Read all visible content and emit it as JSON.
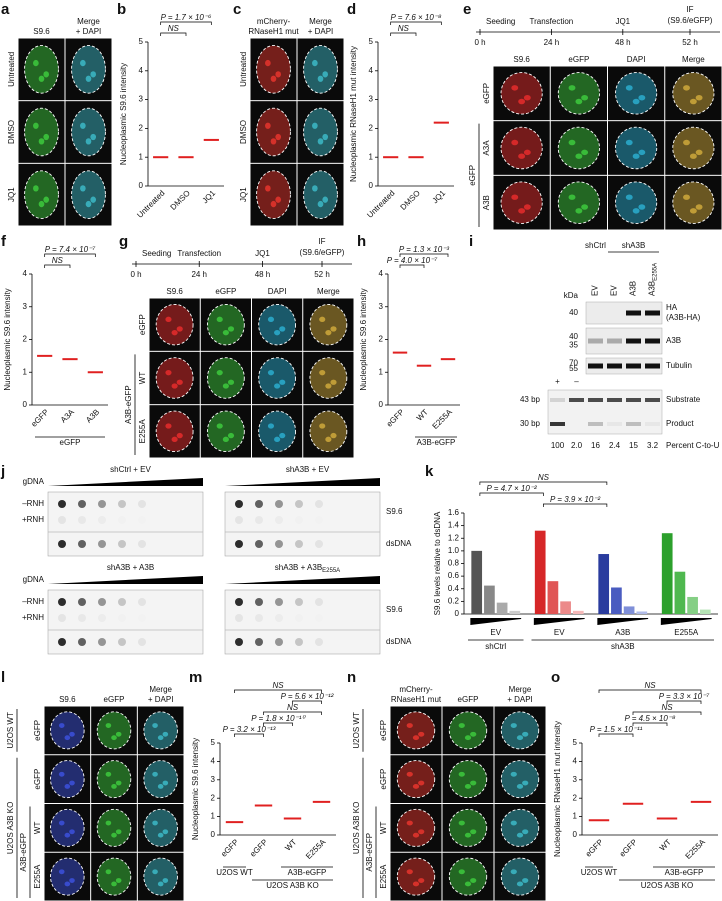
{
  "panels": [
    {
      "letter": "a",
      "kind": "images",
      "columns": [
        {
          "lines": [
            "S9.6"
          ],
          "color": "#2ca02c",
          "tint": "#3cc43c"
        },
        {
          "lines": [
            "Merge",
            "+ DAPI"
          ],
          "color": "#222",
          "tint": "#3bb4c1"
        }
      ],
      "rows": [
        "Untreated",
        "DMSO",
        "JQ1"
      ]
    },
    {
      "letter": "b",
      "kind": "scatter",
      "ylabel": "Nucleoplasmic S9.6 intensity",
      "ylim": [
        0,
        5
      ],
      "yticks": [
        0,
        1,
        2,
        3,
        4,
        5
      ],
      "categories": [
        "Untreated",
        "DMSO",
        "JQ1"
      ],
      "medians": [
        1.0,
        1.0,
        1.6
      ],
      "brackets": [
        "P = 1.7 × 10⁻⁶",
        "NS"
      ]
    },
    {
      "letter": "c",
      "kind": "images",
      "columns": [
        {
          "lines": [
            "mCherry-",
            "RNaseH1 mut"
          ],
          "color": "#e0332c",
          "tint": "#e0332c"
        },
        {
          "lines": [
            "Merge",
            "+ DAPI"
          ],
          "color": "#222",
          "tint": "#3bb4c1"
        }
      ],
      "rows": [
        "Untreated",
        "DMSO",
        "JQ1"
      ]
    },
    {
      "letter": "d",
      "kind": "scatter",
      "ylabel": "Nucleoplasmic RNaseH1 mut intensity",
      "ylim": [
        0,
        5
      ],
      "yticks": [
        0,
        1,
        2,
        3,
        4,
        5
      ],
      "categories": [
        "Untreated",
        "DMSO",
        "JQ1"
      ],
      "medians": [
        1.0,
        1.0,
        2.2
      ],
      "brackets": [
        "P = 7.6 × 10⁻⁸",
        "NS"
      ]
    },
    {
      "letter": "e",
      "kind": "images",
      "timeline": {
        "steps": [
          "Seeding",
          "Transfection",
          "JQ1"
        ],
        "readout": [
          "IF",
          "(S9.6/eGFP)"
        ],
        "times": [
          "0 h",
          "24 h",
          "48 h",
          "52 h"
        ]
      },
      "columns": [
        {
          "lines": [
            "S9.6"
          ],
          "color": "#e02b2b",
          "tint": "#e02b2b"
        },
        {
          "lines": [
            "eGFP"
          ],
          "color": "#2ca02c",
          "tint": "#3cc43c"
        },
        {
          "lines": [
            "DAPI"
          ],
          "color": "#2f9fd8",
          "tint": "#2aa7c9"
        },
        {
          "lines": [
            "Merge"
          ],
          "color": "#222",
          "tint": "#c9a43a"
        }
      ],
      "rows": [
        "eGFP",
        "A3A",
        "A3B"
      ],
      "groups": [
        "eGFP"
      ]
    },
    {
      "letter": "f",
      "kind": "scatter",
      "ylabel": "Nucleoplasmic S9.6 intensity",
      "ylim": [
        0,
        4
      ],
      "yticks": [
        0,
        1,
        2,
        3,
        4
      ],
      "categories": [
        "eGFP",
        "A3A",
        "A3B"
      ],
      "medians": [
        1.5,
        1.4,
        1.0
      ],
      "brackets": [
        "P = 7.4 × 10⁻⁷",
        "NS"
      ],
      "groups": [
        "eGFP"
      ]
    },
    {
      "letter": "g",
      "kind": "images",
      "timeline": {
        "steps": [
          "Seeding",
          "Transfection",
          "JQ1"
        ],
        "readout": [
          "IF",
          "(S9.6/eGFP)"
        ],
        "times": [
          "0 h",
          "24 h",
          "48 h",
          "52 h"
        ]
      },
      "columns": [
        {
          "lines": [
            "S9.6"
          ],
          "color": "#e02b2b",
          "tint": "#e02b2b"
        },
        {
          "lines": [
            "eGFP"
          ],
          "color": "#2ca02c",
          "tint": "#3cc43c"
        },
        {
          "lines": [
            "DAPI"
          ],
          "color": "#2f9fd8",
          "tint": "#2aa7c9"
        },
        {
          "lines": [
            "Merge"
          ],
          "color": "#222",
          "tint": "#c9a43a"
        }
      ],
      "rows": [
        "eGFP",
        "WT",
        "E255A"
      ],
      "groups": [
        "A3B-eGFP"
      ]
    },
    {
      "letter": "h",
      "kind": "scatter",
      "ylabel": "Nucleoplasmic S9.6 intensity",
      "ylim": [
        0,
        4
      ],
      "yticks": [
        0,
        1,
        2,
        3,
        4
      ],
      "categories": [
        "eGFP",
        "WT",
        "E255A"
      ],
      "medians": [
        1.6,
        1.2,
        1.4
      ],
      "brackets": [
        "P = 1.3 × 10⁻³",
        "P = 4.0 × 10⁻⁷"
      ],
      "groups": [
        "A3B-eGFP"
      ]
    },
    {
      "letter": "i",
      "kind": "blot",
      "groups": [
        "shCtrl",
        "shA3B"
      ],
      "lanes": [
        "EV",
        "EV",
        "A3B"
      ],
      "last_lane": {
        "base": "A3B",
        "sub": "E255A"
      },
      "unit": "kDa",
      "blots": [
        {
          "markers": [
            "40"
          ],
          "labels": [
            "HA",
            "(A3B-HA)"
          ]
        },
        {
          "markers": [
            "40",
            "35"
          ],
          "labels": [
            "A3B"
          ]
        },
        {
          "markers": [
            "70",
            "55"
          ],
          "labels": [
            "Tubulin"
          ]
        }
      ],
      "gel": {
        "markers": [
          "43 bp",
          "30 bp"
        ],
        "controls": [
          "+",
          "–"
        ],
        "bands": [
          "Substrate",
          "Product"
        ],
        "percents": [
          "100",
          "2.0",
          "16",
          "2.4",
          "15",
          "3.2"
        ],
        "percent_label": "Percent C-to-U"
      }
    },
    {
      "letter": "j",
      "kind": "dots",
      "blots": [
        {
          "title": "shCtrl + EV"
        },
        {
          "title": "shA3B + EV"
        },
        {
          "title": "shA3B + A3B"
        },
        {
          "title": "shA3B + A3B",
          "sub": "E255A"
        }
      ],
      "rows": [
        "gDNA",
        "–RNH",
        "+RNH"
      ],
      "signals": [
        "S9.6",
        "dsDNA"
      ]
    },
    {
      "letter": "k",
      "kind": "bars",
      "ylabel": "S9.6 levels relative to dsDNA",
      "ylim": [
        0,
        1.6
      ],
      "yticks": [
        0,
        0.2,
        0.4,
        0.6,
        0.8,
        {
          "value": 1,
          "label": "1.0"
        },
        1.2,
        1.4,
        1.6
      ],
      "sets": [
        {
          "label": "EV",
          "values": [
            1.0,
            0.45,
            0.18,
            0.05
          ],
          "colors": [
            "#555",
            "#888",
            "#aaa",
            "#ccc"
          ]
        },
        {
          "label": "EV",
          "values": [
            1.32,
            0.52,
            0.2,
            0.05
          ],
          "colors": [
            "#d62728",
            "#e05555",
            "#ec8a8a",
            "#f5b8b8"
          ]
        },
        {
          "label": "A3B",
          "values": [
            0.95,
            0.42,
            0.12,
            0.04
          ],
          "colors": [
            "#2a3c9e",
            "#4a5cc0",
            "#7f8fd8",
            "#b0bbe8"
          ]
        },
        {
          "label": "E255A",
          "values": [
            1.28,
            0.67,
            0.27,
            0.07
          ],
          "colors": [
            "#2ca02c",
            "#4fb84f",
            "#85cf85",
            "#b5e3b5"
          ]
        }
      ],
      "groups": [
        "shCtrl",
        "shA3B"
      ],
      "brackets": [
        "NS",
        "P = 4.7 × 10⁻²",
        "P = 3.9 × 10⁻²"
      ]
    },
    {
      "letter": "l",
      "kind": "images",
      "columns": [
        {
          "lines": [
            "S9.6"
          ],
          "color": "#3b4fd6",
          "tint": "#3b4fd6"
        },
        {
          "lines": [
            "eGFP"
          ],
          "color": "#2ca02c",
          "tint": "#3cc43c"
        },
        {
          "lines": [
            "Merge",
            "+ DAPI"
          ],
          "color": "#222",
          "tint": "#3bb4c1"
        }
      ],
      "rows": [
        "eGFP",
        "eGFP",
        "WT",
        "E255A"
      ],
      "groups": [
        "U2OS WT",
        "U2OS A3B KO",
        "A3B-eGFP"
      ]
    },
    {
      "letter": "m",
      "kind": "scatter",
      "ylabel": "Nucleoplasmic S9.6 intensity",
      "ylim": [
        0,
        5
      ],
      "yticks": [
        0,
        1,
        2,
        3,
        4,
        5
      ],
      "categories": [
        "eGFP",
        "eGFP",
        "WT",
        "E255A"
      ],
      "medians": [
        0.7,
        1.6,
        0.9,
        1.8
      ],
      "brackets": [
        "NS",
        "P = 5.6 × 10⁻¹²",
        "NS",
        "P = 1.8 × 10⁻¹⁰",
        "P = 3.2 × 10⁻¹³"
      ],
      "groups": [
        "U2OS WT",
        "A3B-eGFP",
        "U2OS A3B KO"
      ]
    },
    {
      "letter": "n",
      "kind": "images",
      "columns": [
        {
          "lines": [
            "mCherry-",
            "RNaseH1 mut"
          ],
          "color": "#e0332c",
          "tint": "#e0332c"
        },
        {
          "lines": [
            "eGFP"
          ],
          "color": "#2ca02c",
          "tint": "#3cc43c"
        },
        {
          "lines": [
            "Merge",
            "+ DAPI"
          ],
          "color": "#222",
          "tint": "#3bb4c1"
        }
      ],
      "rows": [
        "eGFP",
        "eGFP",
        "WT",
        "E255A"
      ],
      "groups": [
        "U2OS WT",
        "U2OS A3B KO",
        "A3B-eGFP"
      ]
    },
    {
      "letter": "o",
      "kind": "scatter",
      "ylabel": "Nucleoplasmic RNaseH1 mut intensity",
      "ylim": [
        0,
        5
      ],
      "yticks": [
        0,
        1,
        2,
        3,
        4,
        5
      ],
      "categories": [
        "eGFP",
        "eGFP",
        "WT",
        "E255A"
      ],
      "medians": [
        0.8,
        1.7,
        0.9,
        1.8
      ],
      "brackets": [
        "NS",
        "P = 3.3 × 10⁻⁷",
        "NS",
        "P = 4.5 × 10⁻⁸",
        "P = 1.5 × 10⁻¹¹"
      ],
      "groups": [
        "U2OS WT",
        "A3B-eGFP",
        "U2OS A3B KO"
      ]
    }
  ]
}
